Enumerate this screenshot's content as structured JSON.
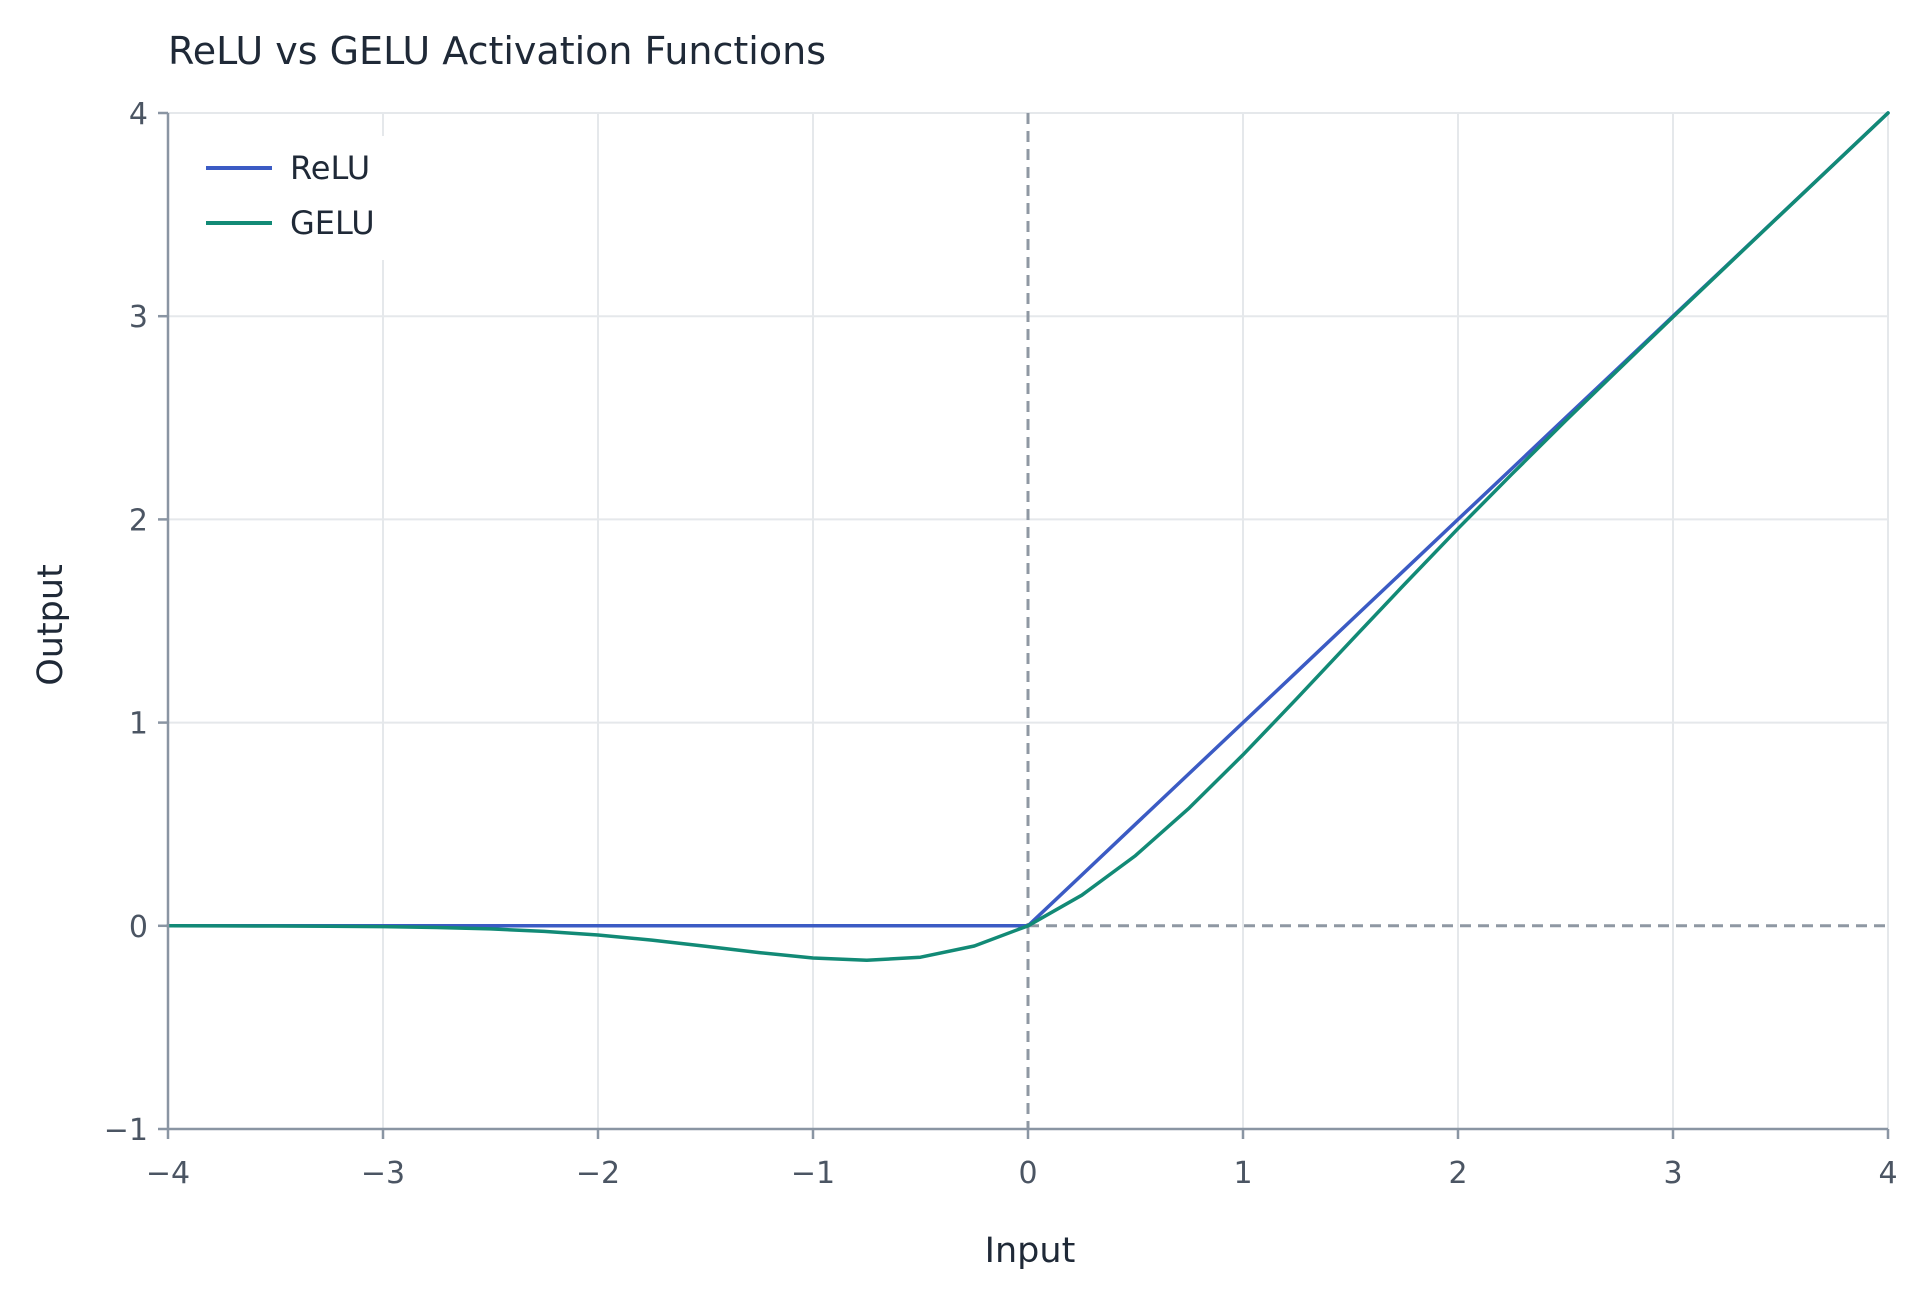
{
  "chart_data": {
    "type": "line",
    "title": "ReLU vs GELU Activation Functions",
    "xlabel": "Input",
    "ylabel": "Output",
    "xlim": [
      -4,
      4
    ],
    "ylim": [
      -1,
      4
    ],
    "x_ticks": [
      -4,
      -3,
      -2,
      -1,
      0,
      1,
      2,
      3,
      4
    ],
    "y_ticks": [
      -1,
      0,
      1,
      2,
      3,
      4
    ],
    "x_tick_labels": [
      "−4",
      "−3",
      "−2",
      "−1",
      "0",
      "1",
      "2",
      "3",
      "4"
    ],
    "y_tick_labels": [
      "−1",
      "0",
      "1",
      "2",
      "3",
      "4"
    ],
    "grid": true,
    "legend_position": "top-left",
    "reference_lines": {
      "x_zero": {
        "value": 0,
        "style": "dashed",
        "color": "#8f98a3"
      },
      "y_zero": {
        "value": 0,
        "style": "dashed",
        "color": "#8f98a3"
      }
    },
    "x": [
      -4.0,
      -3.75,
      -3.5,
      -3.25,
      -3.0,
      -2.75,
      -2.5,
      -2.25,
      -2.0,
      -1.75,
      -1.5,
      -1.25,
      -1.0,
      -0.75,
      -0.5,
      -0.25,
      0.0,
      0.25,
      0.5,
      0.75,
      1.0,
      1.25,
      1.5,
      1.75,
      2.0,
      2.25,
      2.5,
      2.75,
      3.0,
      3.25,
      3.5,
      3.75,
      4.0
    ],
    "series": [
      {
        "name": "ReLU",
        "color": "#3b5bc4",
        "values": [
          0,
          0,
          0,
          0,
          0,
          0,
          0,
          0,
          0,
          0,
          0,
          0,
          0,
          0,
          0,
          0,
          0.0,
          0.25,
          0.5,
          0.75,
          1.0,
          1.25,
          1.5,
          1.75,
          2.0,
          2.25,
          2.5,
          2.75,
          3.0,
          3.25,
          3.5,
          3.75,
          4.0
        ]
      },
      {
        "name": "GELU",
        "color": "#128a76",
        "values": [
          -0.0001,
          -0.0003,
          -0.0008,
          -0.0019,
          -0.004,
          -0.0082,
          -0.0155,
          -0.0274,
          -0.0455,
          -0.0702,
          -0.1002,
          -0.1321,
          -0.1587,
          -0.17,
          -0.1543,
          -0.0995,
          0.0,
          0.1505,
          0.3457,
          0.58,
          0.8413,
          1.1179,
          1.3998,
          1.6798,
          1.9545,
          2.2226,
          2.4845,
          2.7418,
          2.996,
          3.2481,
          3.4992,
          3.7497,
          3.9999
        ]
      }
    ],
    "style": {
      "axis_color": "#8a95a3",
      "grid_color": "#e5e8eb",
      "background": "#ffffff"
    }
  }
}
